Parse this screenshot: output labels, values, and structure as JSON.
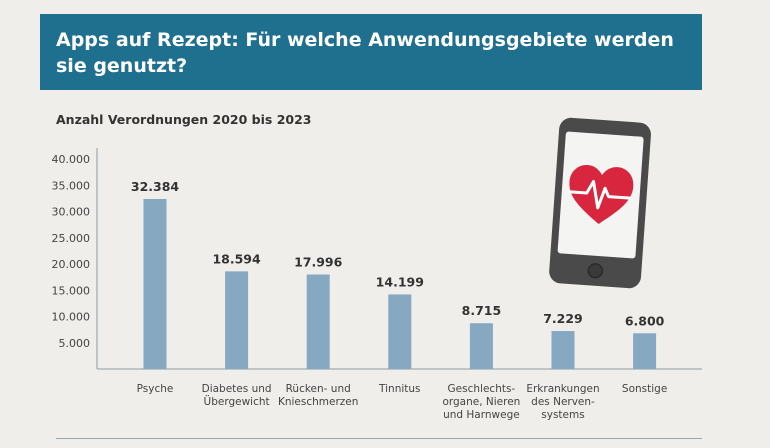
{
  "header": {
    "title": "Apps auf Rezept: Für welche Anwendungsgebiete werden sie genutzt?"
  },
  "chart_data": {
    "type": "bar",
    "title": "Anzahl Verordnungen 2020 bis 2023",
    "categories": [
      [
        "Psyche"
      ],
      [
        "Diabetes und",
        "Übergewicht"
      ],
      [
        "Rücken- und",
        "Knieschmerzen"
      ],
      [
        "Tinnitus"
      ],
      [
        "Geschlechts-",
        "organe, Nieren",
        "und Harnwege"
      ],
      [
        "Erkrankungen",
        "des Nerven-",
        "systems"
      ],
      [
        "Sonstige"
      ]
    ],
    "values": [
      32384,
      18594,
      17996,
      14199,
      8715,
      7229,
      6800
    ],
    "value_labels": [
      "32.384",
      "18.594",
      "17.996",
      "14.199",
      "8.715",
      "7.229",
      "6.800"
    ],
    "yticks": [
      5000,
      10000,
      15000,
      20000,
      25000,
      30000,
      35000,
      40000
    ],
    "ytick_labels": [
      "5.000",
      "10.000",
      "15.000",
      "20.000",
      "25.000",
      "30.000",
      "35.000",
      "40.000"
    ],
    "ylim": [
      0,
      40000
    ],
    "grid": false,
    "bar_color": "#86a8c0"
  },
  "illustration": {
    "icon": "smartphone-heart-icon",
    "accent": "#d7263d"
  }
}
